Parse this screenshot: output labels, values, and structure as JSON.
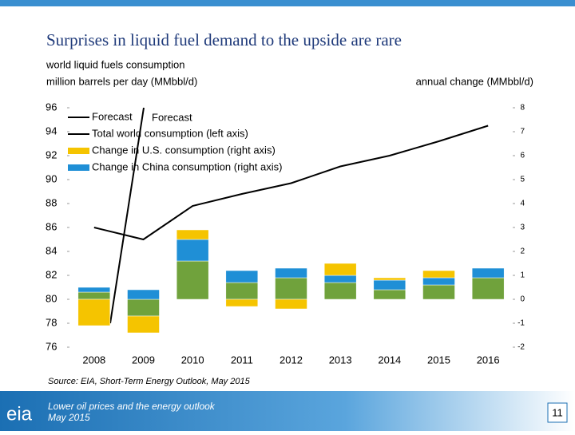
{
  "chart_data": {
    "type": "combo",
    "title": "Surprises in liquid fuel demand to the upside are rare",
    "subtitle": [
      "world liquid fuels consumption",
      "million barrels per day  (MMbbl/d)"
    ],
    "y2_label": "annual change (MMbbl/d)",
    "categories": [
      "2008",
      "2009",
      "2010",
      "2011",
      "2012",
      "2013",
      "2014",
      "2015",
      "2016"
    ],
    "series": [
      {
        "name": "Total world consumption (left axis)",
        "type": "line",
        "axis": "y",
        "color": "#000000",
        "values": [
          86.0,
          85.0,
          87.8,
          88.8,
          89.7,
          91.1,
          92.0,
          93.2,
          94.5
        ]
      },
      {
        "type": "bar",
        "axis": "y2",
        "color": "#70a23c",
        "values": [
          0.3,
          -0.7,
          1.6,
          0.7,
          0.9,
          0.7,
          0.4,
          0.6,
          0.9
        ]
      },
      {
        "name": "Change in China consumption (right axis)",
        "type": "bar",
        "axis": "y2",
        "color": "#1f8fd6",
        "values": [
          0.2,
          0.4,
          0.9,
          0.5,
          0.4,
          0.3,
          0.4,
          0.3,
          0.4
        ]
      },
      {
        "name": "Change in U.S. consumption (right axis)",
        "type": "bar",
        "axis": "y2",
        "color": "#f5c400",
        "values": [
          -1.1,
          -0.7,
          0.4,
          -0.3,
          -0.4,
          0.5,
          0.1,
          0.3,
          0.0
        ]
      }
    ],
    "forecast_label": "Forecast",
    "annotation": "Forecast",
    "ylim": [
      76,
      96
    ],
    "yticks": [
      76,
      78,
      80,
      82,
      84,
      86,
      88,
      90,
      92,
      94,
      96
    ],
    "y2lim": [
      -2,
      8
    ],
    "y2ticks": [
      -2,
      -1,
      0,
      1,
      2,
      3,
      4,
      5,
      6,
      7,
      8
    ],
    "source": "Source: EIA, Short-Term Energy Outlook, May 2015"
  },
  "footer": {
    "logo": "eia",
    "line1": "Lower oil prices and the energy outlook",
    "line2": "May 2015",
    "page": "11"
  }
}
